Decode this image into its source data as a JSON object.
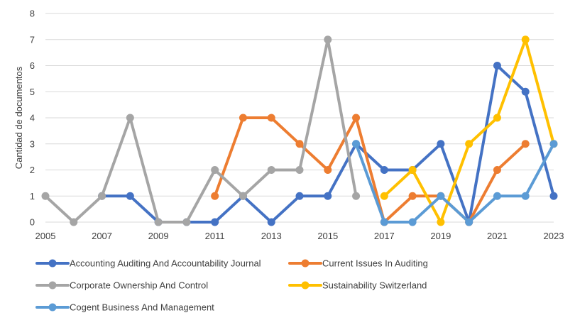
{
  "chart_data": {
    "type": "line",
    "title": "",
    "xlabel": "",
    "ylabel": "Cantidad de documentos",
    "ylim": [
      0,
      8
    ],
    "xlim": [
      2005,
      2023
    ],
    "x_ticks": [
      2005,
      2007,
      2009,
      2011,
      2013,
      2015,
      2017,
      2019,
      2021,
      2023
    ],
    "y_ticks": [
      0,
      1,
      2,
      3,
      4,
      5,
      6,
      7,
      8
    ],
    "grid": "horizontal",
    "legend_position": "bottom",
    "series": [
      {
        "name": "Accounting Auditing And Accountability Journal",
        "color": "#4472C4",
        "x": [
          2007,
          2008,
          2009,
          2010,
          2011,
          2012,
          2013,
          2014,
          2015,
          2016,
          2017,
          2018,
          2019,
          2020,
          2021,
          2022,
          2023
        ],
        "y": [
          1,
          1,
          0,
          0,
          0,
          1,
          0,
          1,
          1,
          3,
          2,
          2,
          3,
          0,
          6,
          5,
          1
        ]
      },
      {
        "name": "Current Issues In Auditing",
        "color": "#ED7D31",
        "x": [
          2011,
          2012,
          2013,
          2014,
          2015,
          2016,
          2017,
          2018,
          2019,
          2020,
          2021,
          2022
        ],
        "y": [
          1,
          4,
          4,
          3,
          2,
          4,
          0,
          1,
          1,
          0,
          2,
          3
        ]
      },
      {
        "name": "Corporate Ownership And Control",
        "color": "#A5A5A5",
        "x": [
          2005,
          2006,
          2007,
          2008,
          2009,
          2010,
          2011,
          2012,
          2013,
          2014,
          2015,
          2016
        ],
        "y": [
          1,
          0,
          1,
          4,
          0,
          0,
          2,
          1,
          2,
          2,
          7,
          1
        ]
      },
      {
        "name": "Sustainability Switzerland",
        "color": "#FFC000",
        "x": [
          2017,
          2018,
          2019,
          2020,
          2021,
          2022,
          2023
        ],
        "y": [
          1,
          2,
          0,
          3,
          4,
          7,
          3
        ]
      },
      {
        "name": "Cogent Business And Management",
        "color": "#5B9BD5",
        "x": [
          2016,
          2017,
          2018,
          2019,
          2020,
          2021,
          2022,
          2023
        ],
        "y": [
          3,
          0,
          0,
          1,
          0,
          1,
          1,
          3
        ]
      }
    ]
  }
}
